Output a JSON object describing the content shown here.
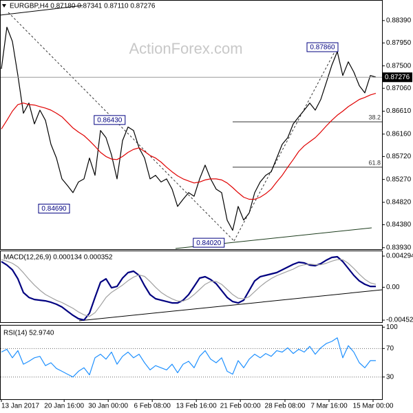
{
  "chart_data": [
    {
      "type": "line",
      "title": "EURGBP,H4  0.87180 0.87341 0.87110 0.87276",
      "watermark": "ActionForex.com",
      "ylim": [
        0.839,
        0.8878
      ],
      "yticks": [
        {
          "value": 0.8839,
          "label": "0.88390"
        },
        {
          "value": 0.8795,
          "label": "0.87950"
        },
        {
          "value": 0.875,
          "label": "0.87500"
        },
        {
          "value": 0.8706,
          "label": "0.87060"
        },
        {
          "value": 0.8661,
          "label": "0.86610"
        },
        {
          "value": 0.8616,
          "label": "0.86160"
        },
        {
          "value": 0.8572,
          "label": "0.85720"
        },
        {
          "value": 0.8527,
          "label": "0.85270"
        },
        {
          "value": 0.8482,
          "label": "0.84820"
        },
        {
          "value": 0.8438,
          "label": "0.84380"
        },
        {
          "value": 0.8393,
          "label": "0.83930"
        }
      ],
      "last_price": {
        "value": 0.87276,
        "label": "0.87276"
      },
      "series": [
        {
          "color": "#000000",
          "values": [
            0.8744,
            0.8826,
            0.8798,
            0.8731,
            0.8657,
            0.8677,
            0.8636,
            0.8663,
            0.8643,
            0.8596,
            0.8569,
            0.8528,
            0.8515,
            0.8501,
            0.8522,
            0.8528,
            0.8569,
            0.8535,
            0.8623,
            0.8609,
            0.8575,
            0.8528,
            0.8603,
            0.863,
            0.8623,
            0.8589,
            0.8569,
            0.8528,
            0.8535,
            0.8522,
            0.8528,
            0.8508,
            0.8474,
            0.8488,
            0.8501,
            0.8494,
            0.8528,
            0.8555,
            0.8528,
            0.8508,
            0.8501,
            0.8447,
            0.8427,
            0.8474,
            0.8447,
            0.8461,
            0.8501,
            0.8522,
            0.8535,
            0.8542,
            0.8569,
            0.8596,
            0.8609,
            0.8636,
            0.865,
            0.8663,
            0.8677,
            0.8663,
            0.8684,
            0.8717,
            0.8751,
            0.8778,
            0.8731,
            0.8758,
            0.8738,
            0.8711,
            0.8697,
            0.8731,
            0.8728
          ]
        },
        {
          "color": "#e00000",
          "values": [
            0.8626,
            0.8643,
            0.8661,
            0.8674,
            0.8677,
            0.8674,
            0.8673,
            0.867,
            0.8667,
            0.8663,
            0.8657,
            0.865,
            0.8639,
            0.8628,
            0.862,
            0.8613,
            0.8603,
            0.8592,
            0.858,
            0.8572,
            0.8567,
            0.8566,
            0.8572,
            0.858,
            0.8586,
            0.8589,
            0.8582,
            0.8574,
            0.8569,
            0.8561,
            0.8551,
            0.8542,
            0.8534,
            0.8528,
            0.8524,
            0.852,
            0.8522,
            0.8526,
            0.8528,
            0.8528,
            0.8526,
            0.852,
            0.8511,
            0.8501,
            0.8492,
            0.8488,
            0.8488,
            0.8492,
            0.8499,
            0.8508,
            0.8522,
            0.8535,
            0.8551,
            0.8566,
            0.8582,
            0.8593,
            0.8601,
            0.8609,
            0.862,
            0.8632,
            0.8643,
            0.8653,
            0.8661,
            0.867,
            0.8677,
            0.8684,
            0.8688,
            0.8693,
            0.8696
          ]
        }
      ],
      "annotations": [
        {
          "label": "0.87860",
          "value": 0.8786,
          "x": 61.25
        },
        {
          "label": "0.86430",
          "value": 0.8643,
          "x": 22.6
        },
        {
          "label": "0.84690",
          "value": 0.8469,
          "x": 12.5
        },
        {
          "label": "0.84020",
          "value": 0.8402,
          "x": 40.6
        }
      ],
      "fib_levels": [
        {
          "label": "38.2",
          "value": 0.864,
          "x": 42
        },
        {
          "label": "61.8",
          "value": 0.8551,
          "x": 42
        }
      ]
    },
    {
      "type": "line",
      "title": "MACD(12,26,9) 0.000134 0.000352",
      "ylim": [
        -0.0048,
        0.00496
      ],
      "yticks": [
        0.004294,
        {
          "value": 0,
          "label": "0.00"
        },
        -0.004523
      ],
      "series": [
        {
          "color": "#000080",
          "values": [
            0.00354,
            0.00306,
            0.0024,
            0.00116,
            -0.00073,
            -0.0014,
            -0.00168,
            -0.00178,
            -0.00187,
            -0.00206,
            -0.00234,
            -0.00272,
            -0.00329,
            -0.00386,
            -0.00433,
            -0.00452,
            -0.00357,
            -0.0014,
            0.00069,
            0.00116,
            -7e-05,
            0.00012,
            0.00126,
            0.00202,
            0.00221,
            0.00164,
            0.00022,
            -0.00101,
            -0.00158,
            -0.00178,
            -0.00197,
            -0.00216,
            -0.00216,
            -0.00178,
            -0.00101,
            0.00012,
            0.00126,
            0.00145,
            0.00107,
            0.0005,
            -0.00045,
            -0.0014,
            -0.00197,
            -0.00216,
            -0.00178,
            -0.00045,
            0.00088,
            0.00145,
            0.00164,
            0.00183,
            0.00202,
            0.0024,
            0.00278,
            0.00316,
            0.00344,
            0.00335,
            0.00306,
            0.00297,
            0.00325,
            0.00373,
            0.00411,
            0.0042,
            0.00354,
            0.00259,
            0.00164,
            0.00088,
            0.00041,
            0.00012,
            0.00012
          ]
        },
        {
          "color": "#a0a0a0",
          "values": [
            0.0038,
            0.0036,
            0.0033,
            0.0028,
            0.002,
            0.0011,
            0.0003,
            -0.0004,
            -0.001,
            -0.0014,
            -0.0018,
            -0.0021,
            -0.0025,
            -0.0029,
            -0.0034,
            -0.0038,
            -0.004,
            -0.0035,
            -0.0025,
            -0.0014,
            -0.0007,
            -0.0002,
            0.0003,
            0.0009,
            0.0014,
            0.0017,
            0.0015,
            0.0008,
            0,
            -0.0007,
            -0.0012,
            -0.0016,
            -0.0019,
            -0.0019,
            -0.0016,
            -0.001,
            -0.0003,
            0.0004,
            0.0008,
            0.0008,
            0.0004,
            -0.0003,
            -0.001,
            -0.0015,
            -0.0016,
            -0.0013,
            -0.0006,
            0.0001,
            0.0007,
            0.0012,
            0.0016,
            0.0019,
            0.0022,
            0.0025,
            0.0029,
            0.0031,
            0.0032,
            0.0031,
            0.0031,
            0.0033,
            0.0036,
            0.0038,
            0.0038,
            0.0033,
            0.0026,
            0.0018,
            0.0011,
            0.0006,
            0.0004
          ]
        }
      ]
    },
    {
      "type": "line",
      "title": "RSI(14) 52.9740",
      "ylim": [
        -1.2,
        102.2
      ],
      "yticks": [
        100,
        70,
        30
      ],
      "levels": [
        70,
        30
      ],
      "xlim": [
        0,
        69
      ],
      "xticks": [
        {
          "value": 0,
          "label": "13 Jan 2017"
        },
        {
          "value": 11.4,
          "label": "20 Jan 16:00"
        },
        {
          "value": 19.4,
          "label": "30 Jan 00:00"
        },
        {
          "value": 27.4,
          "label": "6 Feb 08:00"
        },
        {
          "value": 35.4,
          "label": "13 Feb 16:00"
        },
        {
          "value": 43.4,
          "label": "21 Feb 00:00"
        },
        {
          "value": 51.5,
          "label": "28 Feb 08:00"
        },
        {
          "value": 59.5,
          "label": "7 Mar 16:00"
        },
        {
          "value": 67.5,
          "label": "15 Mar 00:00"
        }
      ],
      "series": [
        {
          "color": "#1e90ff",
          "values": [
            65,
            69,
            57,
            67,
            48,
            52,
            57,
            59,
            46,
            50,
            42,
            38,
            34,
            30,
            38,
            43,
            33,
            57,
            62,
            55,
            65,
            48,
            59,
            65,
            57,
            62,
            50,
            40,
            46,
            43,
            40,
            48,
            36,
            48,
            52,
            43,
            59,
            67,
            55,
            50,
            57,
            38,
            34,
            53,
            43,
            55,
            62,
            57,
            63,
            59,
            67,
            65,
            71,
            63,
            69,
            65,
            73,
            62,
            71,
            77,
            80,
            85,
            57,
            74,
            65,
            50,
            43,
            53,
            53
          ]
        }
      ]
    }
  ]
}
